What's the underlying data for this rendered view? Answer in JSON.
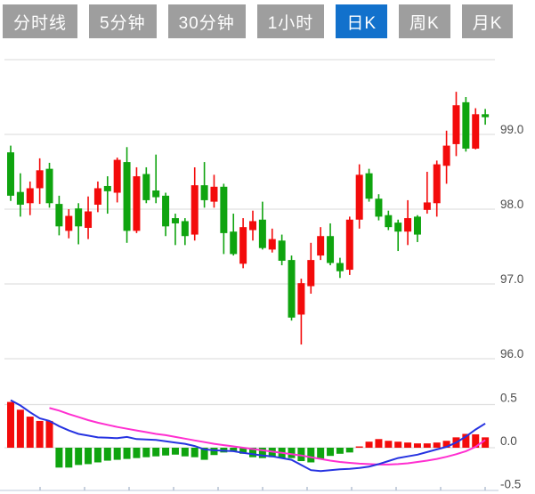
{
  "tabbar": {
    "active_tab": "日K",
    "tabs": [
      {
        "label": "分时线",
        "active": false
      },
      {
        "label": "5分钟",
        "active": false
      },
      {
        "label": "30分钟",
        "active": false
      },
      {
        "label": "1小时",
        "active": false
      },
      {
        "label": "日K",
        "active": true
      },
      {
        "label": "周K",
        "active": false
      },
      {
        "label": "月K",
        "active": false
      }
    ]
  },
  "colors": {
    "tab_bg": "#9e9e9e",
    "tab_active": "#1271cc",
    "tab_text": "#ffffff",
    "grid": "#e0e0e0",
    "axis_line": "#c9d2e0",
    "tick": "#aab8cc",
    "label": "#4d4d4d",
    "up": "#f30b0b",
    "down": "#0fa40f",
    "dif_line": "#2633e1",
    "dea_line": "#ff2fd0"
  },
  "axis": {
    "price_labels": [
      {
        "value": 99,
        "label": "99.0"
      },
      {
        "value": 98,
        "label": "98.0"
      },
      {
        "value": 97,
        "label": "97.0"
      },
      {
        "value": 96,
        "label": "96.0"
      }
    ],
    "macd_labels": [
      {
        "value": 0.5,
        "label": "0.5"
      },
      {
        "value": 0.0,
        "label": "0.0"
      },
      {
        "value": -0.5,
        "label": "-0.5"
      }
    ]
  },
  "chart_data": {
    "type": "candlestick",
    "description": "Daily K-line (日K) price panel with MACD-style indicator panel below; Chinese color convention: red = up, green = down",
    "panels": [
      {
        "type": "candlestick",
        "name": "price",
        "ylim": [
          95.8,
          100.3
        ],
        "gridline_values": [
          100,
          99,
          98,
          97,
          96
        ],
        "grid": true,
        "ohlc": [
          [
            98.76,
            98.85,
            98.11,
            98.18
          ],
          [
            98.23,
            98.48,
            97.9,
            98.06
          ],
          [
            98.08,
            98.37,
            97.92,
            98.28
          ],
          [
            98.28,
            98.68,
            98.07,
            98.52
          ],
          [
            98.54,
            98.62,
            98.02,
            98.08
          ],
          [
            98.07,
            98.18,
            97.65,
            97.77
          ],
          [
            97.71,
            98.0,
            97.61,
            97.91
          ],
          [
            98.01,
            98.08,
            97.53,
            97.77
          ],
          [
            97.75,
            98.17,
            97.6,
            97.97
          ],
          [
            98.06,
            98.37,
            97.96,
            98.28
          ],
          [
            98.31,
            98.44,
            97.94,
            98.24
          ],
          [
            98.22,
            98.69,
            98.09,
            98.66
          ],
          [
            98.63,
            98.83,
            97.55,
            97.71
          ],
          [
            97.71,
            98.56,
            97.68,
            98.44
          ],
          [
            98.47,
            98.56,
            98.08,
            98.12
          ],
          [
            98.25,
            98.73,
            98.08,
            98.16
          ],
          [
            98.18,
            98.22,
            97.64,
            97.77
          ],
          [
            97.88,
            97.94,
            97.52,
            97.81
          ],
          [
            97.84,
            97.88,
            97.52,
            97.64
          ],
          [
            97.66,
            98.56,
            97.58,
            98.32
          ],
          [
            98.32,
            98.63,
            98.02,
            98.12
          ],
          [
            98.1,
            98.46,
            98.02,
            98.3
          ],
          [
            98.3,
            98.34,
            97.4,
            97.68
          ],
          [
            97.7,
            97.94,
            97.38,
            97.4
          ],
          [
            97.27,
            97.88,
            97.21,
            97.76
          ],
          [
            97.72,
            97.98,
            97.58,
            97.84
          ],
          [
            97.86,
            98.1,
            97.46,
            97.48
          ],
          [
            97.46,
            97.74,
            97.42,
            97.6
          ],
          [
            97.58,
            97.66,
            97.25,
            97.31
          ],
          [
            97.32,
            97.38,
            96.51,
            96.55
          ],
          [
            96.59,
            97.07,
            96.19,
            97.01
          ],
          [
            96.97,
            97.55,
            96.87,
            97.32
          ],
          [
            97.38,
            97.76,
            97.32,
            97.64
          ],
          [
            97.64,
            97.81,
            97.25,
            97.28
          ],
          [
            97.28,
            97.35,
            97.08,
            97.17
          ],
          [
            97.19,
            97.9,
            97.12,
            97.86
          ],
          [
            97.86,
            98.6,
            97.74,
            98.46
          ],
          [
            98.48,
            98.54,
            98.1,
            98.14
          ],
          [
            98.14,
            98.2,
            97.85,
            97.9
          ],
          [
            97.92,
            97.98,
            97.72,
            97.76
          ],
          [
            97.82,
            97.86,
            97.44,
            97.7
          ],
          [
            97.7,
            98.12,
            97.52,
            97.88
          ],
          [
            97.9,
            97.92,
            97.56,
            97.66
          ],
          [
            97.99,
            98.5,
            97.94,
            98.09
          ],
          [
            98.08,
            98.65,
            97.9,
            98.6
          ],
          [
            98.58,
            99.05,
            98.34,
            98.85
          ],
          [
            98.87,
            99.57,
            98.71,
            99.39
          ],
          [
            99.43,
            99.5,
            98.77,
            98.81
          ],
          [
            98.81,
            99.35,
            98.8,
            99.27
          ],
          [
            99.27,
            99.34,
            99.13,
            99.23
          ]
        ]
      },
      {
        "type": "bar+line",
        "name": "macd",
        "ylim": [
          -0.5,
          0.5
        ],
        "gridline_values": [
          0.5,
          0.0,
          -0.5
        ],
        "grid": true,
        "histogram": [
          0.53,
          0.44,
          0.36,
          0.31,
          0.31,
          -0.23,
          -0.23,
          -0.2,
          -0.19,
          -0.17,
          -0.15,
          -0.14,
          -0.13,
          -0.12,
          -0.11,
          -0.1,
          -0.09,
          -0.08,
          -0.1,
          -0.11,
          -0.14,
          -0.085,
          -0.055,
          -0.04,
          -0.07,
          -0.11,
          -0.12,
          -0.11,
          -0.12,
          -0.12,
          -0.155,
          -0.17,
          -0.13,
          -0.095,
          -0.07,
          -0.055,
          0.015,
          0.07,
          0.1,
          0.08,
          0.07,
          0.06,
          0.05,
          0.05,
          0.06,
          0.08,
          0.12,
          0.16,
          0.155,
          0.12
        ],
        "series": [
          {
            "name": "DIF",
            "values": [
              0.55,
              0.49,
              0.41,
              0.34,
              0.31,
              0.25,
              0.2,
              0.16,
              0.14,
              0.12,
              0.115,
              0.11,
              0.125,
              0.1,
              0.095,
              0.09,
              0.075,
              0.06,
              0.045,
              0.02,
              -0.02,
              -0.03,
              -0.035,
              -0.04,
              -0.06,
              -0.075,
              -0.09,
              -0.1,
              -0.12,
              -0.14,
              -0.2,
              -0.26,
              -0.27,
              -0.26,
              -0.25,
              -0.245,
              -0.235,
              -0.22,
              -0.19,
              -0.155,
              -0.12,
              -0.1,
              -0.08,
              -0.05,
              -0.02,
              0.01,
              0.06,
              0.13,
              0.21,
              0.28
            ]
          },
          {
            "name": "DEA",
            "values": [
              null,
              null,
              null,
              null,
              0.46,
              0.43,
              0.39,
              0.355,
              0.32,
              0.29,
              0.265,
              0.24,
              0.22,
              0.2,
              0.18,
              0.16,
              0.145,
              0.125,
              0.105,
              0.085,
              0.065,
              0.045,
              0.03,
              0.015,
              0.0,
              -0.015,
              -0.03,
              -0.045,
              -0.06,
              -0.075,
              -0.09,
              -0.11,
              -0.13,
              -0.15,
              -0.165,
              -0.175,
              -0.185,
              -0.19,
              -0.195,
              -0.195,
              -0.19,
              -0.18,
              -0.165,
              -0.15,
              -0.13,
              -0.105,
              -0.075,
              -0.04,
              0.01,
              0.09
            ]
          }
        ]
      }
    ]
  }
}
